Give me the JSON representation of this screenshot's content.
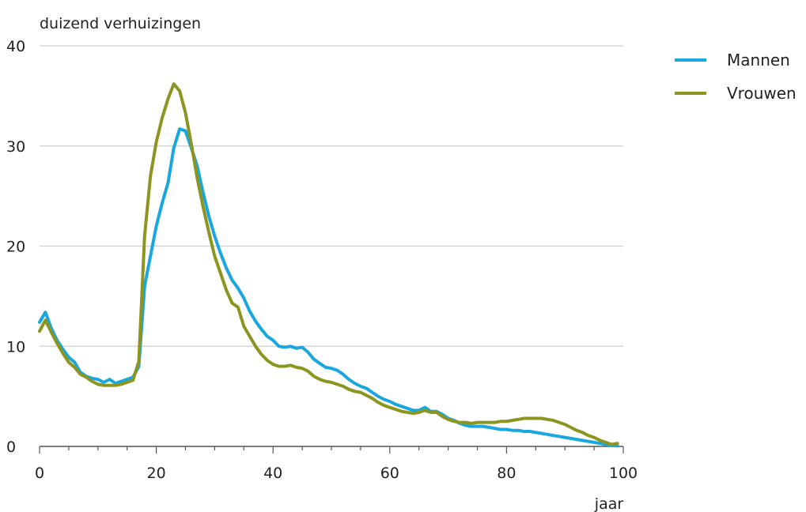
{
  "chart_data": {
    "type": "line",
    "title": "",
    "ylabel": "duizend verhuizingen",
    "xlabel": "jaar",
    "xlim": [
      0,
      100
    ],
    "ylim": [
      0,
      40
    ],
    "xticks": [
      0,
      20,
      40,
      60,
      80,
      100
    ],
    "xtick_labels": [
      "0",
      "20",
      "40",
      "60",
      "80",
      "100"
    ],
    "yticks": [
      0,
      10,
      20,
      30,
      40
    ],
    "ytick_labels": [
      "0",
      "10",
      "20",
      "30",
      "40"
    ],
    "grid": "horizontal",
    "legend_position": "top-right",
    "series": [
      {
        "name": "Mannen",
        "color": "#1aa6df",
        "points": [
          [
            0,
            12.4
          ],
          [
            1,
            13.4
          ],
          [
            2,
            11.8
          ],
          [
            3,
            10.6
          ],
          [
            4,
            9.7
          ],
          [
            5,
            8.9
          ],
          [
            6,
            8.4
          ],
          [
            7,
            7.4
          ],
          [
            8,
            7.0
          ],
          [
            9,
            6.8
          ],
          [
            10,
            6.7
          ],
          [
            11,
            6.4
          ],
          [
            12,
            6.7
          ],
          [
            13,
            6.3
          ],
          [
            14,
            6.5
          ],
          [
            15,
            6.7
          ],
          [
            16,
            6.9
          ],
          [
            17,
            8.0
          ],
          [
            18,
            16.0
          ],
          [
            19,
            19.0
          ],
          [
            20,
            22.0
          ],
          [
            21,
            24.3
          ],
          [
            22,
            26.3
          ],
          [
            23,
            29.8
          ],
          [
            24,
            31.7
          ],
          [
            25,
            31.5
          ],
          [
            26,
            29.8
          ],
          [
            27,
            28.0
          ],
          [
            28,
            25.4
          ],
          [
            29,
            23.0
          ],
          [
            30,
            21.0
          ],
          [
            31,
            19.3
          ],
          [
            32,
            17.8
          ],
          [
            33,
            16.6
          ],
          [
            34,
            15.8
          ],
          [
            35,
            14.8
          ],
          [
            36,
            13.5
          ],
          [
            37,
            12.5
          ],
          [
            38,
            11.7
          ],
          [
            39,
            11.0
          ],
          [
            40,
            10.6
          ],
          [
            41,
            10.0
          ],
          [
            42,
            9.9
          ],
          [
            43,
            10.0
          ],
          [
            44,
            9.8
          ],
          [
            45,
            9.9
          ],
          [
            46,
            9.4
          ],
          [
            47,
            8.7
          ],
          [
            48,
            8.3
          ],
          [
            49,
            7.9
          ],
          [
            50,
            7.8
          ],
          [
            51,
            7.6
          ],
          [
            52,
            7.2
          ],
          [
            53,
            6.7
          ],
          [
            54,
            6.3
          ],
          [
            55,
            6.0
          ],
          [
            56,
            5.8
          ],
          [
            57,
            5.4
          ],
          [
            58,
            5.0
          ],
          [
            59,
            4.7
          ],
          [
            60,
            4.5
          ],
          [
            61,
            4.2
          ],
          [
            62,
            4.0
          ],
          [
            63,
            3.8
          ],
          [
            64,
            3.6
          ],
          [
            65,
            3.6
          ],
          [
            66,
            3.9
          ],
          [
            67,
            3.5
          ],
          [
            68,
            3.5
          ],
          [
            69,
            3.2
          ],
          [
            70,
            2.8
          ],
          [
            71,
            2.6
          ],
          [
            72,
            2.3
          ],
          [
            73,
            2.1
          ],
          [
            74,
            2.0
          ],
          [
            75,
            2.0
          ],
          [
            76,
            2.0
          ],
          [
            77,
            1.9
          ],
          [
            78,
            1.8
          ],
          [
            79,
            1.7
          ],
          [
            80,
            1.7
          ],
          [
            81,
            1.6
          ],
          [
            82,
            1.6
          ],
          [
            83,
            1.5
          ],
          [
            84,
            1.5
          ],
          [
            85,
            1.4
          ],
          [
            86,
            1.3
          ],
          [
            87,
            1.2
          ],
          [
            88,
            1.1
          ],
          [
            89,
            1.0
          ],
          [
            90,
            0.9
          ],
          [
            91,
            0.8
          ],
          [
            92,
            0.7
          ],
          [
            93,
            0.6
          ],
          [
            94,
            0.5
          ],
          [
            95,
            0.4
          ],
          [
            96,
            0.3
          ],
          [
            97,
            0.2
          ],
          [
            98,
            0.1
          ],
          [
            99,
            0.05
          ]
        ]
      },
      {
        "name": "Vrouwen",
        "color": "#8c951f",
        "points": [
          [
            0,
            11.5
          ],
          [
            1,
            12.6
          ],
          [
            2,
            11.4
          ],
          [
            3,
            10.3
          ],
          [
            4,
            9.3
          ],
          [
            5,
            8.4
          ],
          [
            6,
            7.9
          ],
          [
            7,
            7.2
          ],
          [
            8,
            6.9
          ],
          [
            9,
            6.5
          ],
          [
            10,
            6.2
          ],
          [
            11,
            6.1
          ],
          [
            12,
            6.1
          ],
          [
            13,
            6.1
          ],
          [
            14,
            6.2
          ],
          [
            15,
            6.4
          ],
          [
            16,
            6.6
          ],
          [
            17,
            8.5
          ],
          [
            18,
            21.0
          ],
          [
            19,
            27.0
          ],
          [
            20,
            30.4
          ],
          [
            21,
            32.8
          ],
          [
            22,
            34.7
          ],
          [
            23,
            36.2
          ],
          [
            24,
            35.5
          ],
          [
            25,
            33.3
          ],
          [
            26,
            30.2
          ],
          [
            27,
            26.8
          ],
          [
            28,
            24.0
          ],
          [
            29,
            21.4
          ],
          [
            30,
            19.0
          ],
          [
            31,
            17.3
          ],
          [
            32,
            15.6
          ],
          [
            33,
            14.3
          ],
          [
            34,
            13.9
          ],
          [
            35,
            12.0
          ],
          [
            36,
            11.0
          ],
          [
            37,
            10.0
          ],
          [
            38,
            9.2
          ],
          [
            39,
            8.6
          ],
          [
            40,
            8.2
          ],
          [
            41,
            8.0
          ],
          [
            42,
            8.0
          ],
          [
            43,
            8.1
          ],
          [
            44,
            7.9
          ],
          [
            45,
            7.8
          ],
          [
            46,
            7.5
          ],
          [
            47,
            7.0
          ],
          [
            48,
            6.7
          ],
          [
            49,
            6.5
          ],
          [
            50,
            6.4
          ],
          [
            51,
            6.2
          ],
          [
            52,
            6.0
          ],
          [
            53,
            5.7
          ],
          [
            54,
            5.5
          ],
          [
            55,
            5.4
          ],
          [
            56,
            5.1
          ],
          [
            57,
            4.8
          ],
          [
            58,
            4.4
          ],
          [
            59,
            4.1
          ],
          [
            60,
            3.9
          ],
          [
            61,
            3.7
          ],
          [
            62,
            3.5
          ],
          [
            63,
            3.4
          ],
          [
            64,
            3.3
          ],
          [
            65,
            3.4
          ],
          [
            66,
            3.6
          ],
          [
            67,
            3.4
          ],
          [
            68,
            3.4
          ],
          [
            69,
            3.0
          ],
          [
            70,
            2.7
          ],
          [
            71,
            2.5
          ],
          [
            72,
            2.4
          ],
          [
            73,
            2.4
          ],
          [
            74,
            2.3
          ],
          [
            75,
            2.4
          ],
          [
            76,
            2.4
          ],
          [
            77,
            2.4
          ],
          [
            78,
            2.4
          ],
          [
            79,
            2.5
          ],
          [
            80,
            2.5
          ],
          [
            81,
            2.6
          ],
          [
            82,
            2.7
          ],
          [
            83,
            2.8
          ],
          [
            84,
            2.8
          ],
          [
            85,
            2.8
          ],
          [
            86,
            2.8
          ],
          [
            87,
            2.7
          ],
          [
            88,
            2.6
          ],
          [
            89,
            2.4
          ],
          [
            90,
            2.2
          ],
          [
            91,
            1.9
          ],
          [
            92,
            1.6
          ],
          [
            93,
            1.4
          ],
          [
            94,
            1.1
          ],
          [
            95,
            0.9
          ],
          [
            96,
            0.6
          ],
          [
            97,
            0.4
          ],
          [
            98,
            0.2
          ],
          [
            99,
            0.3
          ]
        ]
      }
    ]
  }
}
